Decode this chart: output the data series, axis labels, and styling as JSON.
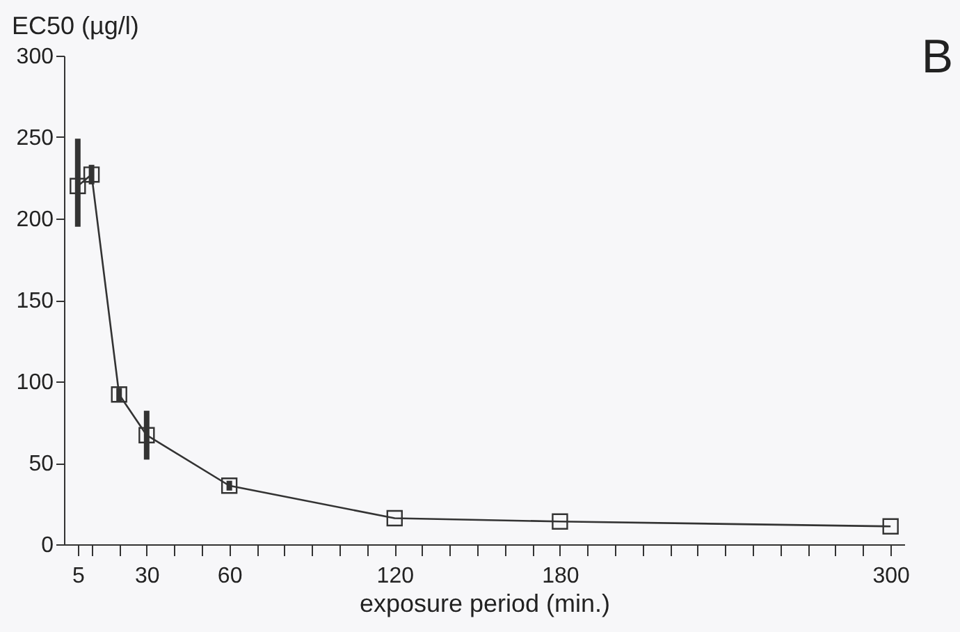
{
  "chart_data": {
    "type": "line",
    "xlabel": "exposure period (min.)",
    "ylabel": "EC50 (µg/l)",
    "annotations": [
      "B"
    ],
    "x": [
      5,
      10,
      20,
      30,
      60,
      120,
      180,
      300
    ],
    "series": [
      {
        "color": "#333333",
        "values": [
          220,
          227,
          92,
          67,
          36,
          16,
          14,
          11
        ],
        "errors": [
          [
            195,
            249
          ],
          6,
          4,
          [
            52,
            82
          ],
          3,
          null,
          null,
          null
        ]
      }
    ],
    "xlim": [
      0,
      305
    ],
    "ylim": [
      0,
      300
    ],
    "yticks": [
      0,
      50,
      100,
      150,
      200,
      250,
      300
    ],
    "xticks": [
      5,
      {
        "value": 10,
        "label": null
      },
      {
        "value": 20,
        "label": null
      },
      30,
      {
        "value": 40,
        "label": null
      },
      {
        "value": 50,
        "label": null
      },
      60,
      {
        "value": 70,
        "label": null
      },
      {
        "value": 80,
        "label": null
      },
      {
        "value": 90,
        "label": null
      },
      {
        "value": 100,
        "label": null
      },
      {
        "value": 110,
        "label": null
      },
      120,
      {
        "value": 130,
        "label": null
      },
      {
        "value": 140,
        "label": null
      },
      {
        "value": 150,
        "label": null
      },
      {
        "value": 160,
        "label": null
      },
      {
        "value": 170,
        "label": null
      },
      180,
      {
        "value": 190,
        "label": null
      },
      {
        "value": 200,
        "label": null
      },
      {
        "value": 210,
        "label": null
      },
      {
        "value": 220,
        "label": null
      },
      {
        "value": 230,
        "label": null
      },
      {
        "value": 240,
        "label": null
      },
      {
        "value": 250,
        "label": null
      },
      {
        "value": 260,
        "label": null
      },
      {
        "value": 270,
        "label": null
      },
      {
        "value": 280,
        "label": null
      },
      {
        "value": 290,
        "label": null
      },
      300
    ],
    "marker": "square",
    "line_style": "solid",
    "grid": false
  }
}
